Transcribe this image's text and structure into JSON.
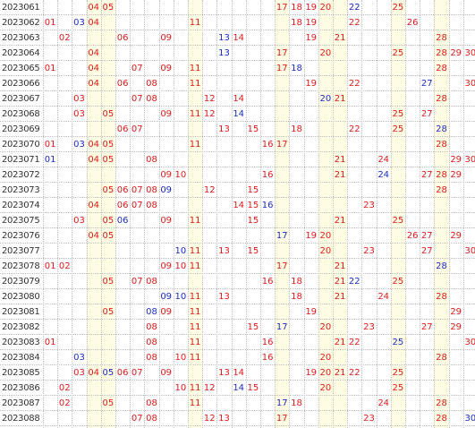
{
  "grid": {
    "numbers": [
      "01",
      "02",
      "03",
      "04",
      "05",
      "06",
      "07",
      "08",
      "09",
      "10",
      "11",
      "12",
      "13",
      "14",
      "15",
      "16",
      "17",
      "18",
      "19",
      "20",
      "21",
      "22",
      "23",
      "24",
      "25",
      "26",
      "27",
      "28",
      "29",
      "30"
    ],
    "colors": {
      "red": "#e01b1b",
      "blue": "#1c2cc4",
      "highlight": "#fffde3",
      "gridline": "#bfbfbf",
      "period_text": "#333333"
    },
    "highlight_columns": [
      "04",
      "05",
      "11",
      "17",
      "20",
      "21",
      "25",
      "28"
    ],
    "rows": [
      {
        "period": "2023061",
        "red": [
          "04",
          "05",
          "17",
          "18",
          "19",
          "20",
          "25"
        ],
        "blue": [
          "22"
        ]
      },
      {
        "period": "2023062",
        "red": [
          "01",
          "04",
          "11",
          "18",
          "19",
          "22",
          "26"
        ],
        "blue": [
          "03"
        ]
      },
      {
        "period": "2023063",
        "red": [
          "02",
          "06",
          "09",
          "14",
          "19",
          "21",
          "28"
        ],
        "blue": [
          "13"
        ]
      },
      {
        "period": "2023064",
        "red": [
          "04",
          "17",
          "20",
          "25",
          "28",
          "29",
          "30"
        ],
        "blue": [
          "13"
        ]
      },
      {
        "period": "2023065",
        "red": [
          "01",
          "04",
          "07",
          "09",
          "11",
          "17",
          "28"
        ],
        "blue": [
          "18"
        ]
      },
      {
        "period": "2023066",
        "red": [
          "04",
          "06",
          "08",
          "11",
          "19",
          "22",
          "30"
        ],
        "blue": [
          "27"
        ]
      },
      {
        "period": "2023067",
        "red": [
          "03",
          "07",
          "08",
          "12",
          "14",
          "21",
          "28"
        ],
        "blue": [
          "20"
        ]
      },
      {
        "period": "2023068",
        "red": [
          "03",
          "05",
          "09",
          "11",
          "12",
          "25",
          "27"
        ],
        "blue": [
          "14"
        ]
      },
      {
        "period": "2023069",
        "red": [
          "06",
          "07",
          "13",
          "15",
          "18",
          "22",
          "25"
        ],
        "blue": [
          "28"
        ]
      },
      {
        "period": "2023070",
        "red": [
          "01",
          "04",
          "05",
          "11",
          "16",
          "17",
          "28"
        ],
        "blue": [
          "03"
        ]
      },
      {
        "period": "2023071",
        "red": [
          "04",
          "05",
          "08",
          "21",
          "24",
          "29",
          "30"
        ],
        "blue": [
          "01"
        ]
      },
      {
        "period": "2023072",
        "red": [
          "09",
          "10",
          "16",
          "21",
          "27",
          "28",
          "29"
        ],
        "blue": [
          "24"
        ]
      },
      {
        "period": "2023073",
        "red": [
          "05",
          "06",
          "07",
          "08",
          "12",
          "15",
          "28"
        ],
        "blue": [
          "09"
        ]
      },
      {
        "period": "2023074",
        "red": [
          "04",
          "06",
          "07",
          "08",
          "14",
          "15",
          "23"
        ],
        "blue": [
          "16"
        ]
      },
      {
        "period": "2023075",
        "red": [
          "03",
          "05",
          "09",
          "11",
          "15",
          "21",
          "25"
        ],
        "blue": [
          "06"
        ]
      },
      {
        "period": "2023076",
        "red": [
          "04",
          "05",
          "19",
          "20",
          "26",
          "27",
          "29"
        ],
        "blue": [
          "17"
        ]
      },
      {
        "period": "2023077",
        "red": [
          "11",
          "13",
          "15",
          "20",
          "23",
          "27",
          "30"
        ],
        "blue": [
          "10"
        ]
      },
      {
        "period": "2023078",
        "red": [
          "01",
          "02",
          "09",
          "10",
          "11",
          "17",
          "21"
        ],
        "blue": [
          "28"
        ]
      },
      {
        "period": "2023079",
        "red": [
          "05",
          "07",
          "08",
          "16",
          "18",
          "21",
          "25"
        ],
        "blue": [
          "22"
        ]
      },
      {
        "period": "2023080",
        "red": [
          "11",
          "13",
          "18",
          "21",
          "24",
          "28"
        ],
        "blue": [
          "09",
          "10"
        ]
      },
      {
        "period": "2023081",
        "red": [
          "05",
          "09",
          "11",
          "19",
          "29"
        ],
        "blue": [
          "08"
        ]
      },
      {
        "period": "2023082",
        "red": [
          "08",
          "11",
          "15",
          "20",
          "23",
          "27",
          "29"
        ],
        "blue": [
          "17"
        ]
      },
      {
        "period": "2023083",
        "red": [
          "01",
          "08",
          "11",
          "16",
          "21",
          "22",
          "30"
        ],
        "blue": [
          "25"
        ]
      },
      {
        "period": "2023084",
        "red": [
          "08",
          "10",
          "11",
          "16",
          "20",
          "28"
        ],
        "blue": [
          "03"
        ]
      },
      {
        "period": "2023085",
        "red": [
          "03",
          "04",
          "06",
          "07",
          "09",
          "13",
          "14",
          "19",
          "20",
          "21",
          "22",
          "25"
        ],
        "blue": [
          "05"
        ]
      },
      {
        "period": "2023086",
        "red": [
          "02",
          "10",
          "11",
          "12",
          "15",
          "20",
          "25"
        ],
        "blue": [
          "14"
        ]
      },
      {
        "period": "2023087",
        "red": [
          "02",
          "05",
          "08",
          "11",
          "18",
          "24",
          "28"
        ],
        "blue": [
          "17"
        ]
      },
      {
        "period": "2023088",
        "red": [
          "07",
          "08",
          "12",
          "13",
          "17",
          "23",
          "28"
        ],
        "blue": [
          "30"
        ]
      }
    ]
  }
}
